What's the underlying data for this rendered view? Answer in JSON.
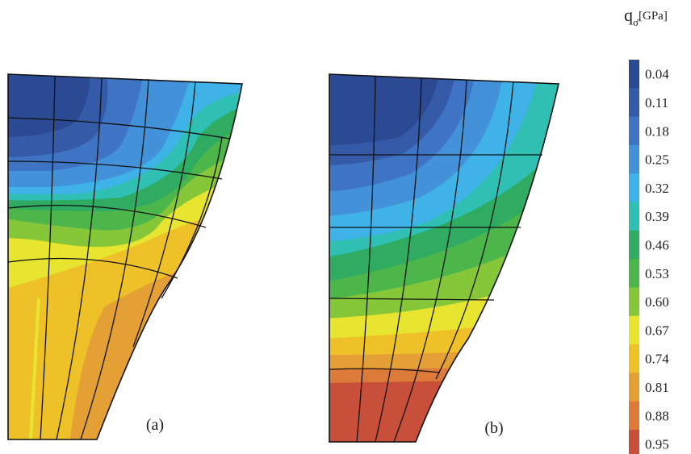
{
  "panels": [
    {
      "caption": "(a)"
    },
    {
      "caption": "(b)"
    }
  ],
  "legend": {
    "symbol": "q",
    "subscript": "σ̄",
    "unit": "[GPa]",
    "levels": [
      "0.04",
      "0.11",
      "0.18",
      "0.25",
      "0.32",
      "0.39",
      "0.46",
      "0.53",
      "0.60",
      "0.67",
      "0.74",
      "0.81",
      "0.88",
      "0.95"
    ],
    "colors": [
      "#2b4a93",
      "#345aa8",
      "#3f74c4",
      "#4392d9",
      "#3fb2e8",
      "#2fbfb3",
      "#2fab62",
      "#4cb64a",
      "#86c73a",
      "#e8e530",
      "#efc128",
      "#e5a035",
      "#dc7a3a",
      "#c8503a"
    ]
  }
}
